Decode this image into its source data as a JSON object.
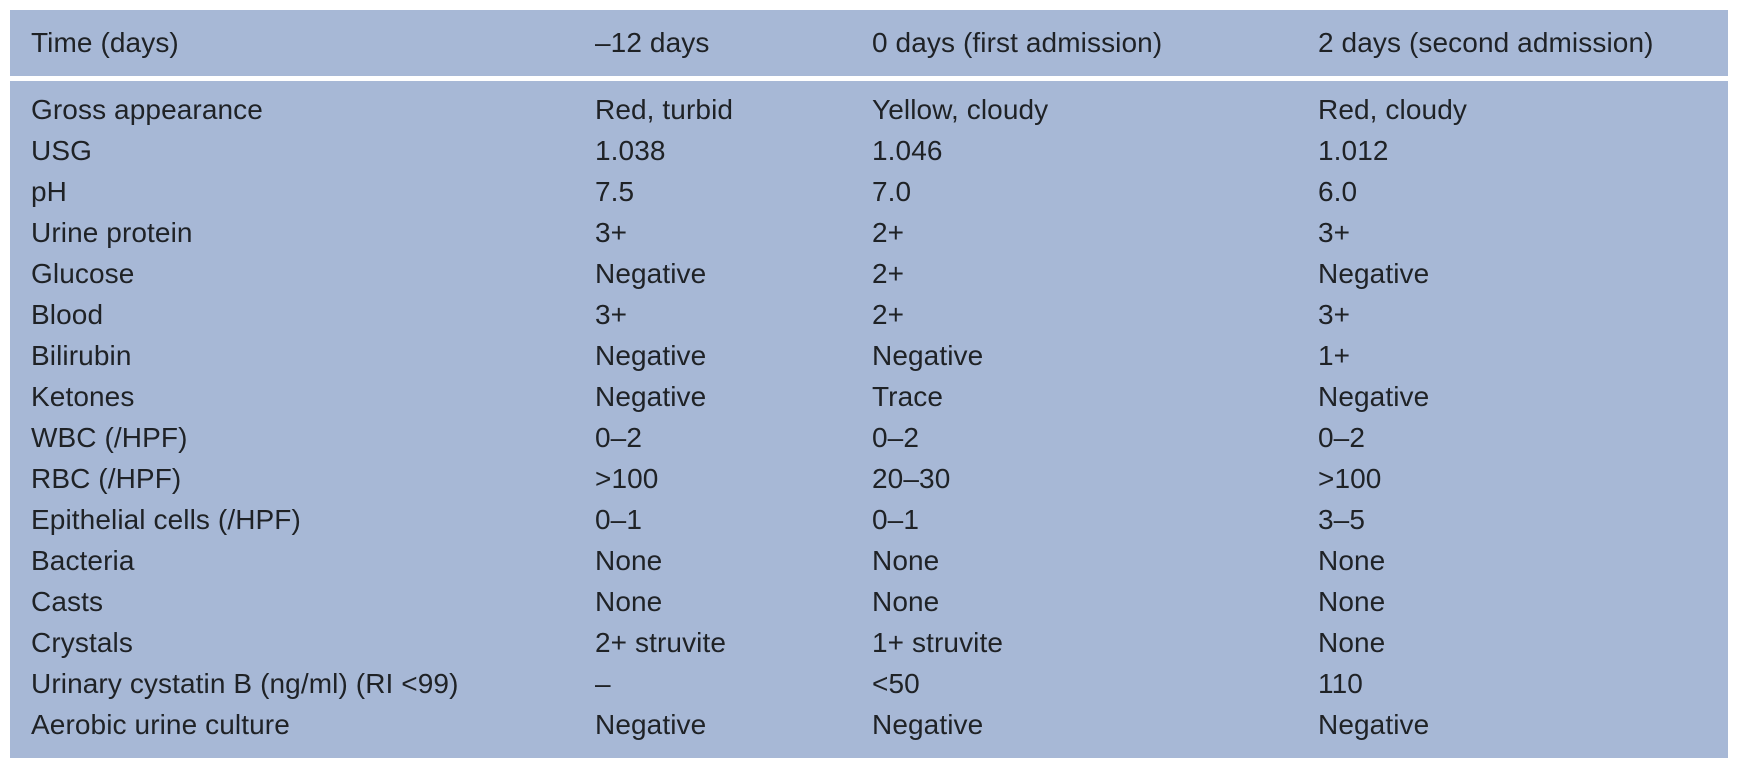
{
  "table": {
    "headers": [
      "Time (days)",
      "–12 days",
      "0 days (first admission)",
      "2 days (second admission)"
    ],
    "rows": [
      [
        "Gross appearance",
        "Red, turbid",
        "Yellow, cloudy",
        "Red, cloudy"
      ],
      [
        "USG",
        "1.038",
        "1.046",
        "1.012"
      ],
      [
        "pH",
        "7.5",
        "7.0",
        "6.0"
      ],
      [
        "Urine protein",
        "3+",
        "2+",
        "3+"
      ],
      [
        "Glucose",
        "Negative",
        "2+",
        "Negative"
      ],
      [
        "Blood",
        "3+",
        "2+",
        "3+"
      ],
      [
        "Bilirubin",
        "Negative",
        "Negative",
        "1+"
      ],
      [
        "Ketones",
        "Negative",
        "Trace",
        "Negative"
      ],
      [
        "WBC (/HPF)",
        "0–2",
        "0–2",
        "0–2"
      ],
      [
        "RBC (/HPF)",
        ">100",
        "20–30",
        ">100"
      ],
      [
        "Epithelial cells (/HPF)",
        "0–1",
        "0–1",
        "3–5"
      ],
      [
        "Bacteria",
        "None",
        "None",
        "None"
      ],
      [
        "Casts",
        "None",
        "None",
        "None"
      ],
      [
        "Crystals",
        "2+ struvite",
        "1+ struvite",
        "None"
      ],
      [
        "Urinary cystatin B (ng/ml) (RI <99)",
        "–",
        "<50",
        "110"
      ],
      [
        "Aerobic urine culture",
        "Negative",
        "Negative",
        "Negative"
      ]
    ]
  }
}
